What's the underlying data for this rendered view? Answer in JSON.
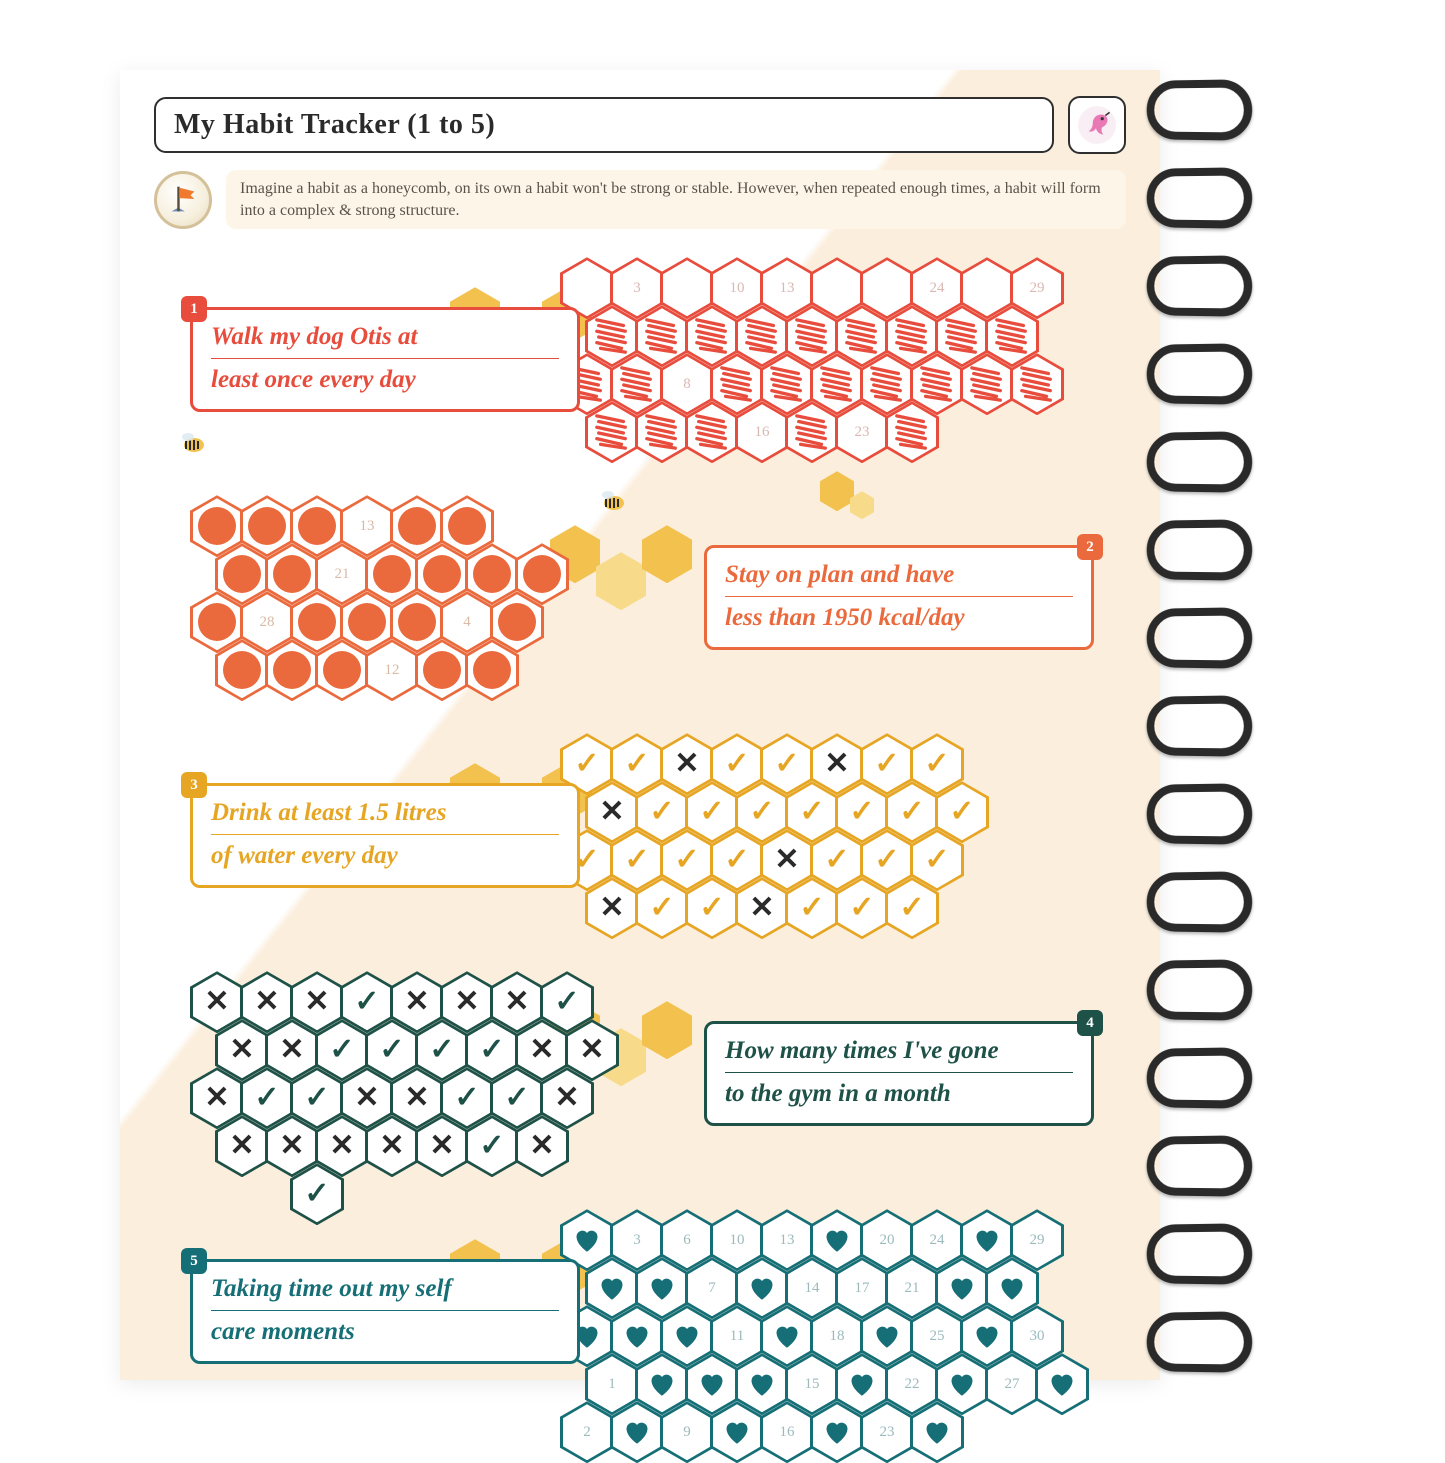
{
  "title": "My Habit Tracker (1 to 5)",
  "intro": "Imagine a habit as a honeycomb, on its own a habit won't be strong or stable. However, when repeated enough times, a habit will form into a complex & strong structure.",
  "palette": {
    "habit1": {
      "accent": "#e84c3d",
      "border": "#e84c3d",
      "muted": "#d9b8b3"
    },
    "habit2": {
      "accent": "#ea6a3d",
      "border": "#ea6a3d",
      "muted": "#d8baa6"
    },
    "habit3": {
      "accent": "#e6a523",
      "border": "#e6a523",
      "muted": "#cfc09a"
    },
    "habit4": {
      "accent": "#1e5147",
      "border": "#1e5147",
      "muted": "#9db3ad"
    },
    "habit5": {
      "accent": "#166f76",
      "border": "#166f76",
      "muted": "#9cbabc"
    },
    "yellow1": "#f2c14e",
    "yellow2": "#f7db8a",
    "cream": "#fbeedd",
    "text": "#2a2a2a"
  },
  "habits": [
    {
      "num": "1",
      "line1": "Walk my dog Otis at",
      "line2": "least once every day",
      "label_side": "left",
      "comb_side": "right",
      "fill_type": "scribble",
      "visible_numbers": [
        "3",
        "10",
        "13",
        "24",
        "29",
        "8",
        "16",
        "23"
      ],
      "cells": [
        {
          "r": 0,
          "c": 0,
          "v": ""
        },
        {
          "r": 0,
          "c": 1,
          "v": "3"
        },
        {
          "r": 0,
          "c": 2,
          "v": ""
        },
        {
          "r": 0,
          "c": 3,
          "v": "10"
        },
        {
          "r": 0,
          "c": 4,
          "v": "13"
        },
        {
          "r": 0,
          "c": 5,
          "v": ""
        },
        {
          "r": 0,
          "c": 6,
          "v": ""
        },
        {
          "r": 0,
          "c": 7,
          "v": "24"
        },
        {
          "r": 0,
          "c": 8,
          "v": ""
        },
        {
          "r": 0,
          "c": 9,
          "v": "29"
        },
        {
          "r": 1,
          "c": 0,
          "v": "S"
        },
        {
          "r": 1,
          "c": 1,
          "v": "S"
        },
        {
          "r": 1,
          "c": 2,
          "v": "S"
        },
        {
          "r": 1,
          "c": 3,
          "v": "S"
        },
        {
          "r": 1,
          "c": 4,
          "v": "S"
        },
        {
          "r": 1,
          "c": 5,
          "v": "S"
        },
        {
          "r": 1,
          "c": 6,
          "v": "S"
        },
        {
          "r": 1,
          "c": 7,
          "v": "S"
        },
        {
          "r": 1,
          "c": 8,
          "v": "S"
        },
        {
          "r": 2,
          "c": 0,
          "v": "S"
        },
        {
          "r": 2,
          "c": 1,
          "v": "S"
        },
        {
          "r": 2,
          "c": 2,
          "v": "8"
        },
        {
          "r": 2,
          "c": 3,
          "v": "S"
        },
        {
          "r": 2,
          "c": 4,
          "v": "S"
        },
        {
          "r": 2,
          "c": 5,
          "v": "S"
        },
        {
          "r": 2,
          "c": 6,
          "v": "S"
        },
        {
          "r": 2,
          "c": 7,
          "v": "S"
        },
        {
          "r": 2,
          "c": 8,
          "v": "S"
        },
        {
          "r": 2,
          "c": 9,
          "v": "S"
        },
        {
          "r": 3,
          "c": 0,
          "v": "S"
        },
        {
          "r": 3,
          "c": 1,
          "v": "S"
        },
        {
          "r": 3,
          "c": 2,
          "v": "S"
        },
        {
          "r": 3,
          "c": 3,
          "v": "16"
        },
        {
          "r": 3,
          "c": 4,
          "v": "S"
        },
        {
          "r": 3,
          "c": 5,
          "v": "23"
        },
        {
          "r": 3,
          "c": 6,
          "v": "S"
        }
      ]
    },
    {
      "num": "2",
      "line1": "Stay on plan and have",
      "line2": "less than 1950 kcal/day",
      "label_side": "right",
      "comb_side": "left",
      "fill_type": "dot",
      "visible_numbers": [
        "13",
        "21",
        "4",
        "28",
        "12"
      ],
      "cells": [
        {
          "r": 0,
          "c": 0,
          "v": "D"
        },
        {
          "r": 0,
          "c": 1,
          "v": "D"
        },
        {
          "r": 0,
          "c": 2,
          "v": "D"
        },
        {
          "r": 0,
          "c": 3,
          "v": "13"
        },
        {
          "r": 0,
          "c": 4,
          "v": "D"
        },
        {
          "r": 0,
          "c": 5,
          "v": "D"
        },
        {
          "r": 1,
          "c": 0,
          "v": "D"
        },
        {
          "r": 1,
          "c": 1,
          "v": "D"
        },
        {
          "r": 1,
          "c": 2,
          "v": "21"
        },
        {
          "r": 1,
          "c": 3,
          "v": "D"
        },
        {
          "r": 1,
          "c": 4,
          "v": "D"
        },
        {
          "r": 1,
          "c": 5,
          "v": "D"
        },
        {
          "r": 1,
          "c": 6,
          "v": "D"
        },
        {
          "r": 2,
          "c": 0,
          "v": "D"
        },
        {
          "r": 2,
          "c": 1,
          "v": "28"
        },
        {
          "r": 2,
          "c": 2,
          "v": "D"
        },
        {
          "r": 2,
          "c": 3,
          "v": "D"
        },
        {
          "r": 2,
          "c": 4,
          "v": "D"
        },
        {
          "r": 2,
          "c": 5,
          "v": "4"
        },
        {
          "r": 2,
          "c": 6,
          "v": "D"
        },
        {
          "r": 3,
          "c": 0,
          "v": "D"
        },
        {
          "r": 3,
          "c": 1,
          "v": "D"
        },
        {
          "r": 3,
          "c": 2,
          "v": "D"
        },
        {
          "r": 3,
          "c": 3,
          "v": "12"
        },
        {
          "r": 3,
          "c": 4,
          "v": "D"
        },
        {
          "r": 3,
          "c": 5,
          "v": "D"
        }
      ]
    },
    {
      "num": "3",
      "line1": "Drink at least 1.5 litres",
      "line2": "of water every day",
      "label_side": "left",
      "comb_side": "right",
      "fill_type": "check",
      "cells": [
        {
          "r": 0,
          "c": 0,
          "v": "C"
        },
        {
          "r": 0,
          "c": 1,
          "v": "C"
        },
        {
          "r": 0,
          "c": 2,
          "v": "X"
        },
        {
          "r": 0,
          "c": 3,
          "v": "C"
        },
        {
          "r": 0,
          "c": 4,
          "v": "C"
        },
        {
          "r": 0,
          "c": 5,
          "v": "X"
        },
        {
          "r": 0,
          "c": 6,
          "v": "C"
        },
        {
          "r": 0,
          "c": 7,
          "v": "C"
        },
        {
          "r": 1,
          "c": 0,
          "v": "X"
        },
        {
          "r": 1,
          "c": 1,
          "v": "C"
        },
        {
          "r": 1,
          "c": 2,
          "v": "C"
        },
        {
          "r": 1,
          "c": 3,
          "v": "C"
        },
        {
          "r": 1,
          "c": 4,
          "v": "C"
        },
        {
          "r": 1,
          "c": 5,
          "v": "C"
        },
        {
          "r": 1,
          "c": 6,
          "v": "C"
        },
        {
          "r": 1,
          "c": 7,
          "v": "C"
        },
        {
          "r": 2,
          "c": 0,
          "v": "C"
        },
        {
          "r": 2,
          "c": 1,
          "v": "C"
        },
        {
          "r": 2,
          "c": 2,
          "v": "C"
        },
        {
          "r": 2,
          "c": 3,
          "v": "C"
        },
        {
          "r": 2,
          "c": 4,
          "v": "X"
        },
        {
          "r": 2,
          "c": 5,
          "v": "C"
        },
        {
          "r": 2,
          "c": 6,
          "v": "C"
        },
        {
          "r": 2,
          "c": 7,
          "v": "C"
        },
        {
          "r": 3,
          "c": 0,
          "v": "X"
        },
        {
          "r": 3,
          "c": 1,
          "v": "C"
        },
        {
          "r": 3,
          "c": 2,
          "v": "C"
        },
        {
          "r": 3,
          "c": 3,
          "v": "X"
        },
        {
          "r": 3,
          "c": 4,
          "v": "C"
        },
        {
          "r": 3,
          "c": 5,
          "v": "C"
        },
        {
          "r": 3,
          "c": 6,
          "v": "C"
        }
      ]
    },
    {
      "num": "4",
      "line1": "How many times I've gone",
      "line2": "to the gym in a month",
      "label_side": "right",
      "comb_side": "left",
      "fill_type": "check",
      "cells": [
        {
          "r": 0,
          "c": 0,
          "v": "X"
        },
        {
          "r": 0,
          "c": 1,
          "v": "X"
        },
        {
          "r": 0,
          "c": 2,
          "v": "X"
        },
        {
          "r": 0,
          "c": 3,
          "v": "C"
        },
        {
          "r": 0,
          "c": 4,
          "v": "X"
        },
        {
          "r": 0,
          "c": 5,
          "v": "X"
        },
        {
          "r": 0,
          "c": 6,
          "v": "X"
        },
        {
          "r": 0,
          "c": 7,
          "v": "C"
        },
        {
          "r": 1,
          "c": 0,
          "v": "X"
        },
        {
          "r": 1,
          "c": 1,
          "v": "X"
        },
        {
          "r": 1,
          "c": 2,
          "v": "C"
        },
        {
          "r": 1,
          "c": 3,
          "v": "C"
        },
        {
          "r": 1,
          "c": 4,
          "v": "C"
        },
        {
          "r": 1,
          "c": 5,
          "v": "C"
        },
        {
          "r": 1,
          "c": 6,
          "v": "X"
        },
        {
          "r": 1,
          "c": 7,
          "v": "X"
        },
        {
          "r": 2,
          "c": 0,
          "v": "X"
        },
        {
          "r": 2,
          "c": 1,
          "v": "C"
        },
        {
          "r": 2,
          "c": 2,
          "v": "C"
        },
        {
          "r": 2,
          "c": 3,
          "v": "X"
        },
        {
          "r": 2,
          "c": 4,
          "v": "X"
        },
        {
          "r": 2,
          "c": 5,
          "v": "C"
        },
        {
          "r": 2,
          "c": 6,
          "v": "C"
        },
        {
          "r": 2,
          "c": 7,
          "v": "X"
        },
        {
          "r": 3,
          "c": 0,
          "v": "X"
        },
        {
          "r": 3,
          "c": 1,
          "v": "X"
        },
        {
          "r": 3,
          "c": 2,
          "v": "X"
        },
        {
          "r": 3,
          "c": 3,
          "v": "X"
        },
        {
          "r": 3,
          "c": 4,
          "v": "X"
        },
        {
          "r": 3,
          "c": 5,
          "v": "C"
        },
        {
          "r": 3,
          "c": 6,
          "v": "X"
        },
        {
          "r": 4,
          "c": 2,
          "v": "C"
        }
      ]
    },
    {
      "num": "5",
      "line1": "Taking time out my self",
      "line2": "care moments",
      "label_side": "left",
      "comb_side": "right",
      "fill_type": "heart",
      "visible_numbers": [
        "3",
        "6",
        "10",
        "13",
        "20",
        "24",
        "29",
        "7",
        "14",
        "17",
        "21",
        "11",
        "18",
        "25",
        "30",
        "1",
        "15",
        "22",
        "27",
        "2",
        "9",
        "16",
        "23"
      ],
      "cells": [
        {
          "r": 0,
          "c": 0,
          "v": "H"
        },
        {
          "r": 0,
          "c": 1,
          "v": "3"
        },
        {
          "r": 0,
          "c": 2,
          "v": "6"
        },
        {
          "r": 0,
          "c": 3,
          "v": "10"
        },
        {
          "r": 0,
          "c": 4,
          "v": "13"
        },
        {
          "r": 0,
          "c": 5,
          "v": "H"
        },
        {
          "r": 0,
          "c": 6,
          "v": "20"
        },
        {
          "r": 0,
          "c": 7,
          "v": "24"
        },
        {
          "r": 0,
          "c": 8,
          "v": "H"
        },
        {
          "r": 0,
          "c": 9,
          "v": "29"
        },
        {
          "r": 1,
          "c": 0,
          "v": "H"
        },
        {
          "r": 1,
          "c": 1,
          "v": "H"
        },
        {
          "r": 1,
          "c": 2,
          "v": "7"
        },
        {
          "r": 1,
          "c": 3,
          "v": "H"
        },
        {
          "r": 1,
          "c": 4,
          "v": "14"
        },
        {
          "r": 1,
          "c": 5,
          "v": "17"
        },
        {
          "r": 1,
          "c": 6,
          "v": "21"
        },
        {
          "r": 1,
          "c": 7,
          "v": "H"
        },
        {
          "r": 1,
          "c": 8,
          "v": "H"
        },
        {
          "r": 2,
          "c": 0,
          "v": "H"
        },
        {
          "r": 2,
          "c": 1,
          "v": "H"
        },
        {
          "r": 2,
          "c": 2,
          "v": "H"
        },
        {
          "r": 2,
          "c": 3,
          "v": "11"
        },
        {
          "r": 2,
          "c": 4,
          "v": "H"
        },
        {
          "r": 2,
          "c": 5,
          "v": "18"
        },
        {
          "r": 2,
          "c": 6,
          "v": "H"
        },
        {
          "r": 2,
          "c": 7,
          "v": "25"
        },
        {
          "r": 2,
          "c": 8,
          "v": "H"
        },
        {
          "r": 2,
          "c": 9,
          "v": "30"
        },
        {
          "r": 3,
          "c": 0,
          "v": "1"
        },
        {
          "r": 3,
          "c": 1,
          "v": "H"
        },
        {
          "r": 3,
          "c": 2,
          "v": "H"
        },
        {
          "r": 3,
          "c": 3,
          "v": "H"
        },
        {
          "r": 3,
          "c": 4,
          "v": "15"
        },
        {
          "r": 3,
          "c": 5,
          "v": "H"
        },
        {
          "r": 3,
          "c": 6,
          "v": "22"
        },
        {
          "r": 3,
          "c": 7,
          "v": "H"
        },
        {
          "r": 3,
          "c": 8,
          "v": "27"
        },
        {
          "r": 3,
          "c": 9,
          "v": "H"
        },
        {
          "r": 4,
          "c": 0,
          "v": "2"
        },
        {
          "r": 4,
          "c": 1,
          "v": "H"
        },
        {
          "r": 4,
          "c": 2,
          "v": "9"
        },
        {
          "r": 4,
          "c": 3,
          "v": "H"
        },
        {
          "r": 4,
          "c": 4,
          "v": "16"
        },
        {
          "r": 4,
          "c": 5,
          "v": "H"
        },
        {
          "r": 4,
          "c": 6,
          "v": "23"
        },
        {
          "r": 4,
          "c": 7,
          "v": "H"
        }
      ]
    }
  ]
}
